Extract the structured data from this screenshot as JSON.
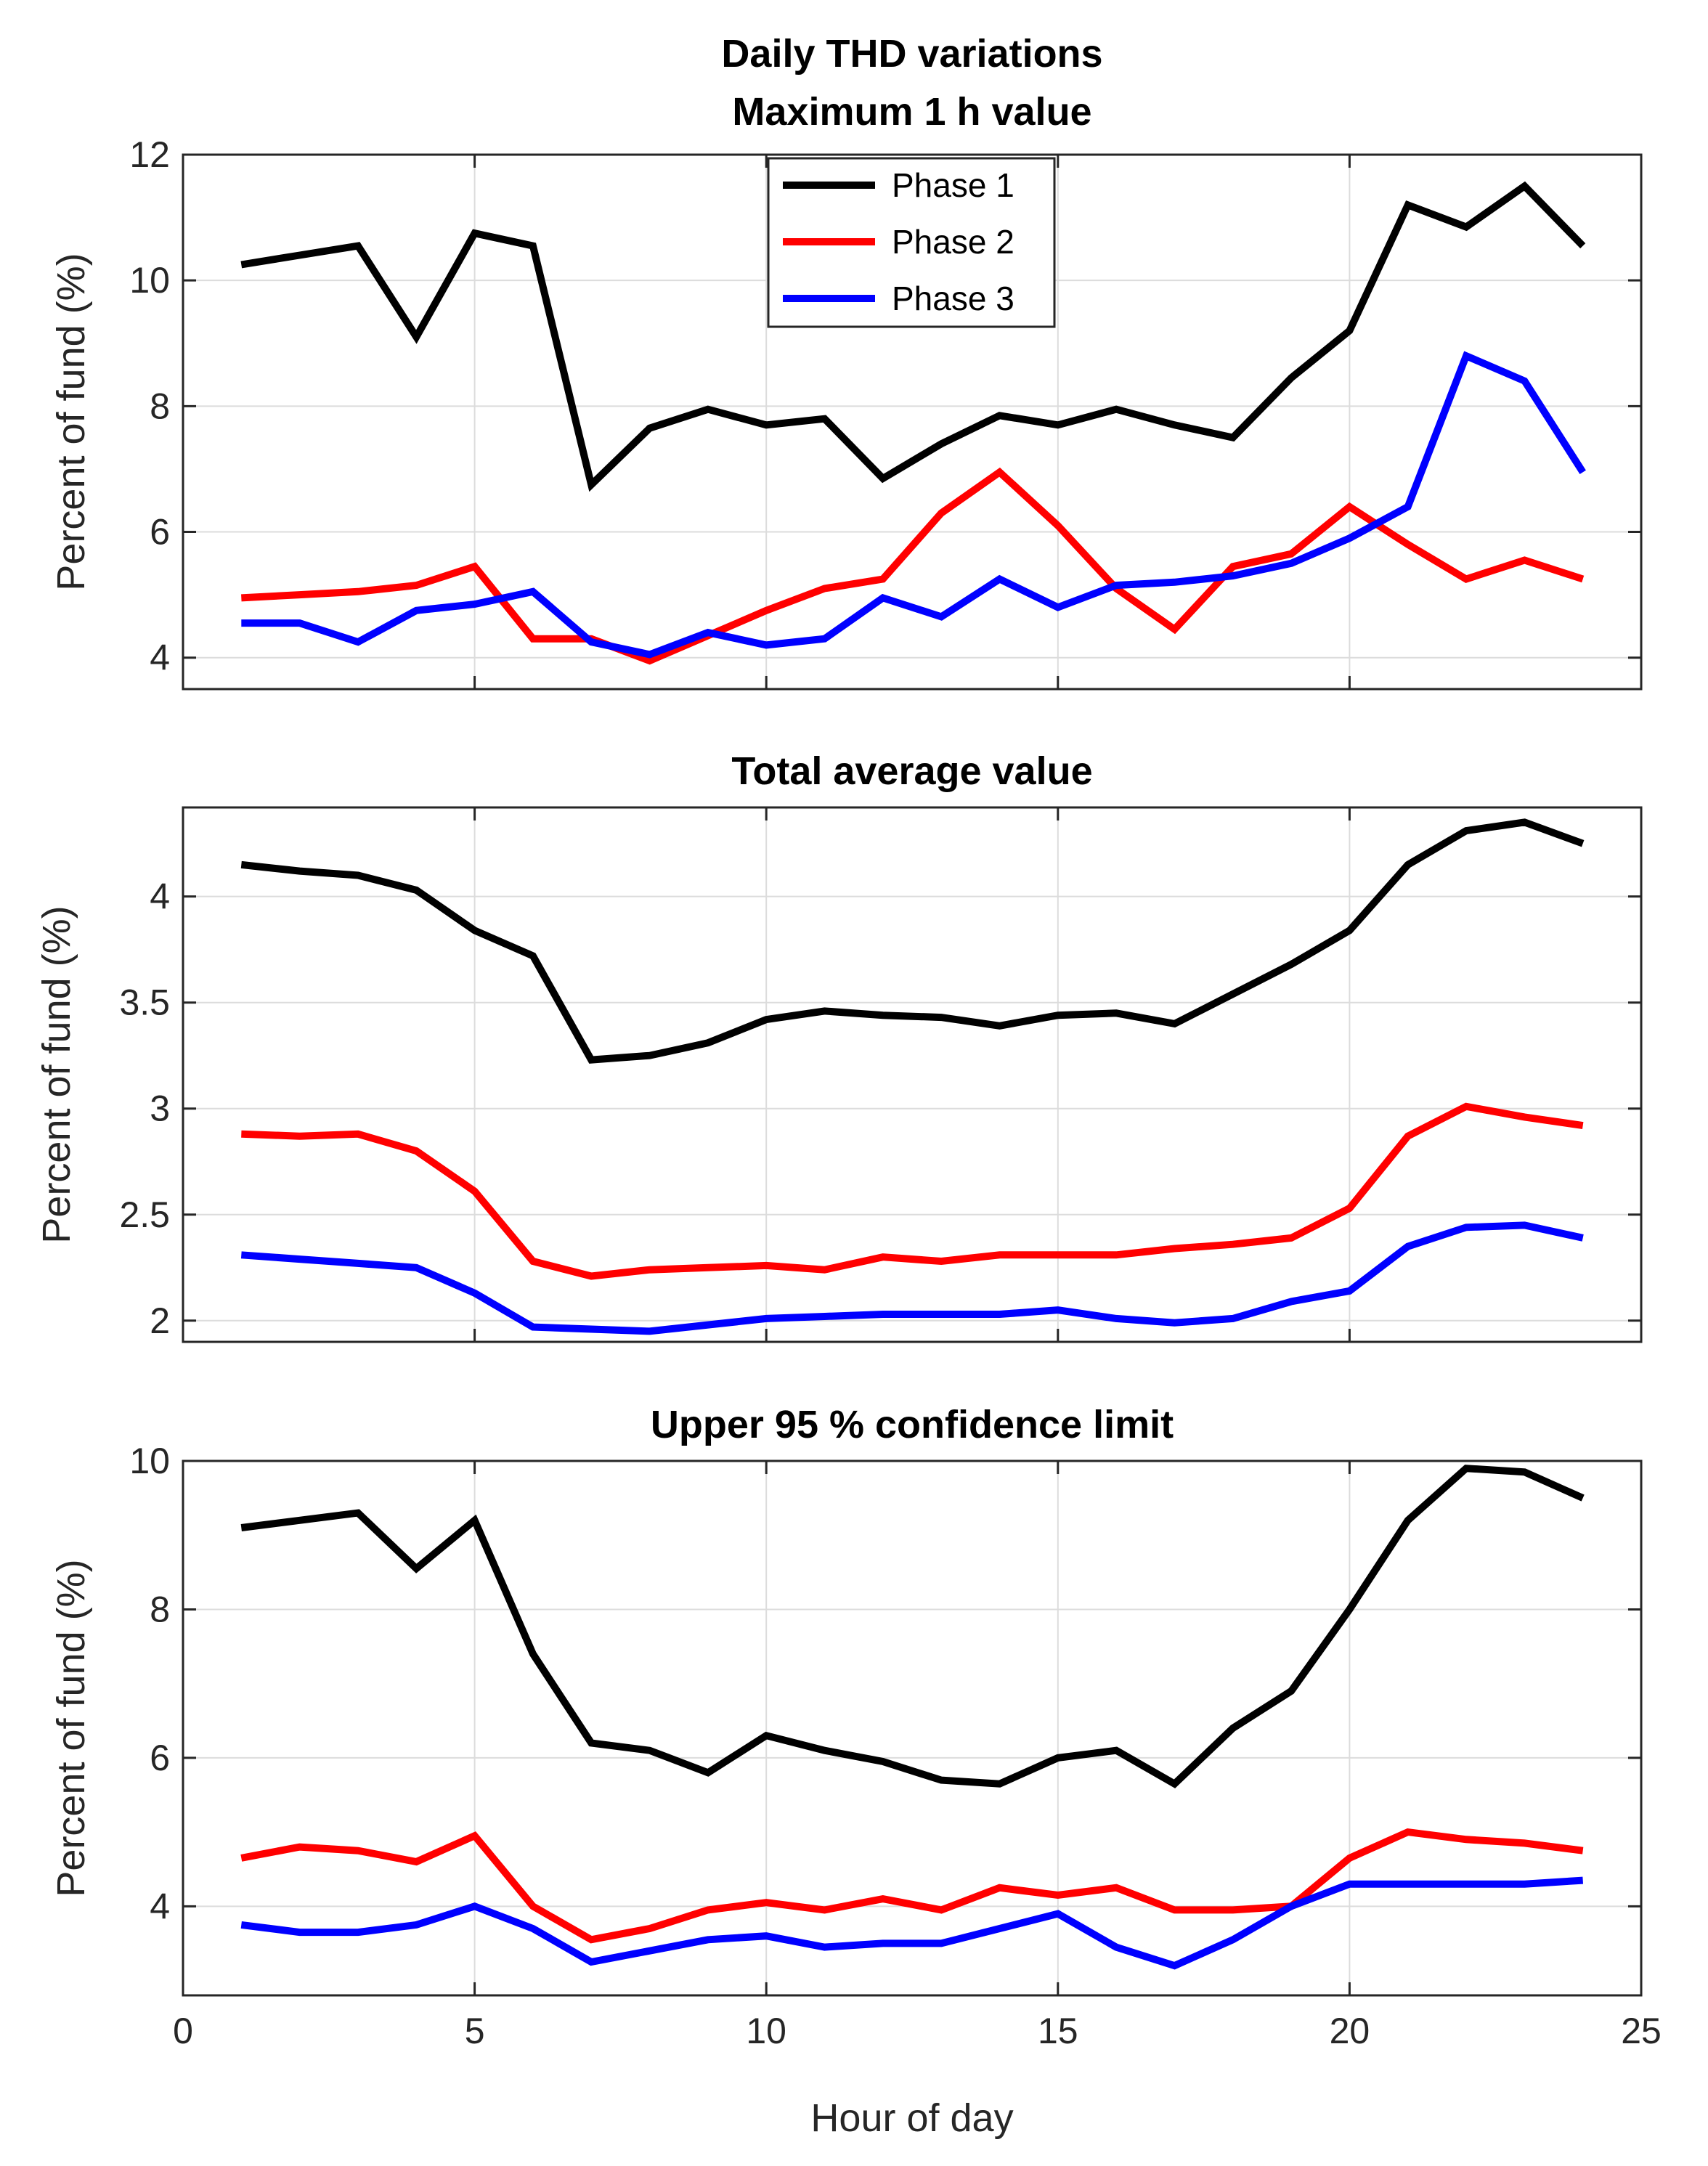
{
  "figure_title": "Daily THD variations",
  "xlabel": "Hour of day",
  "colors": {
    "phase1": "#000000",
    "phase2": "#ff0000",
    "phase3": "#0000ff"
  },
  "legend": [
    "Phase 1",
    "Phase 2",
    "Phase 3"
  ],
  "chart_data": [
    {
      "type": "line",
      "title": "Maximum 1 h value",
      "ylabel": "Percent of fund (%)",
      "xlim": [
        0,
        25
      ],
      "ylim": [
        3.5,
        12
      ],
      "xticks": [
        0,
        5,
        10,
        15,
        20,
        25
      ],
      "yticks": [
        4,
        6,
        8,
        10,
        12
      ],
      "x": [
        1,
        2,
        3,
        4,
        5,
        6,
        7,
        8,
        9,
        10,
        11,
        12,
        13,
        14,
        15,
        16,
        17,
        18,
        19,
        20,
        21,
        22,
        23,
        24
      ],
      "series": [
        {
          "name": "Phase 1",
          "values": [
            10.25,
            10.4,
            10.55,
            9.1,
            10.75,
            10.55,
            6.75,
            7.65,
            7.95,
            7.7,
            7.8,
            6.85,
            7.4,
            7.85,
            7.7,
            7.95,
            7.7,
            7.5,
            8.45,
            9.2,
            11.2,
            10.85,
            11.5,
            10.55
          ]
        },
        {
          "name": "Phase 2",
          "values": [
            4.95,
            5.0,
            5.05,
            5.15,
            5.45,
            4.3,
            4.3,
            3.95,
            4.35,
            4.75,
            5.1,
            5.25,
            6.3,
            6.95,
            6.1,
            5.1,
            4.45,
            5.45,
            5.65,
            6.4,
            5.8,
            5.25,
            5.55,
            5.25
          ]
        },
        {
          "name": "Phase 3",
          "values": [
            4.55,
            4.55,
            4.25,
            4.75,
            4.85,
            5.05,
            4.25,
            4.05,
            4.4,
            4.2,
            4.3,
            4.95,
            4.65,
            5.25,
            4.8,
            5.15,
            5.2,
            5.3,
            5.5,
            5.9,
            6.4,
            8.8,
            8.4,
            6.95
          ]
        }
      ],
      "legend_position": "top-center",
      "grid": true
    },
    {
      "type": "line",
      "title": "Total average value",
      "ylabel": "Percent of fund (%)",
      "xlim": [
        0,
        25
      ],
      "ylim": [
        1.9,
        4.42
      ],
      "xticks": [
        0,
        5,
        10,
        15,
        20,
        25
      ],
      "yticks": [
        2,
        2.5,
        3,
        3.5,
        4
      ],
      "ytick_labels": [
        "2",
        "2.5",
        "3",
        "3.5",
        "4"
      ],
      "x": [
        1,
        2,
        3,
        4,
        5,
        6,
        7,
        8,
        9,
        10,
        11,
        12,
        13,
        14,
        15,
        16,
        17,
        18,
        19,
        20,
        21,
        22,
        23,
        24
      ],
      "series": [
        {
          "name": "Phase 1",
          "values": [
            4.15,
            4.12,
            4.1,
            4.03,
            3.84,
            3.72,
            3.23,
            3.25,
            3.31,
            3.42,
            3.46,
            3.44,
            3.43,
            3.39,
            3.44,
            3.45,
            3.4,
            3.54,
            3.68,
            3.84,
            4.15,
            4.31,
            4.35,
            4.25
          ]
        },
        {
          "name": "Phase 2",
          "values": [
            2.88,
            2.87,
            2.88,
            2.8,
            2.61,
            2.28,
            2.21,
            2.24,
            2.25,
            2.26,
            2.24,
            2.3,
            2.28,
            2.31,
            2.31,
            2.31,
            2.34,
            2.36,
            2.39,
            2.53,
            2.87,
            3.01,
            2.96,
            2.92
          ]
        },
        {
          "name": "Phase 3",
          "values": [
            2.31,
            2.29,
            2.27,
            2.25,
            2.13,
            1.97,
            1.96,
            1.95,
            1.98,
            2.01,
            2.02,
            2.03,
            2.03,
            2.03,
            2.05,
            2.01,
            1.99,
            2.01,
            2.09,
            2.14,
            2.35,
            2.44,
            2.45,
            2.39
          ]
        }
      ],
      "grid": true
    },
    {
      "type": "line",
      "title": "Upper 95 % confidence limit",
      "ylabel": "Percent of fund (%)",
      "xlim": [
        0,
        25
      ],
      "ylim": [
        2.8,
        10
      ],
      "xticks": [
        0,
        5,
        10,
        15,
        20,
        25
      ],
      "yticks": [
        4,
        6,
        8,
        10
      ],
      "x": [
        1,
        2,
        3,
        4,
        5,
        6,
        7,
        8,
        9,
        10,
        11,
        12,
        13,
        14,
        15,
        16,
        17,
        18,
        19,
        20,
        21,
        22,
        23,
        24
      ],
      "series": [
        {
          "name": "Phase 1",
          "values": [
            9.1,
            9.2,
            9.3,
            8.55,
            9.2,
            7.4,
            6.2,
            6.1,
            5.8,
            6.3,
            6.1,
            5.95,
            5.7,
            5.65,
            6.0,
            6.1,
            5.65,
            6.4,
            6.9,
            8.0,
            9.2,
            9.9,
            9.85,
            9.5
          ]
        },
        {
          "name": "Phase 2",
          "values": [
            4.65,
            4.8,
            4.75,
            4.6,
            4.95,
            4.0,
            3.55,
            3.7,
            3.95,
            4.05,
            3.95,
            4.1,
            3.95,
            4.25,
            4.15,
            4.25,
            3.95,
            3.95,
            4.0,
            4.65,
            5.0,
            4.9,
            4.85,
            4.75
          ]
        },
        {
          "name": "Phase 3",
          "values": [
            3.75,
            3.65,
            3.65,
            3.75,
            4.0,
            3.7,
            3.25,
            3.4,
            3.55,
            3.6,
            3.45,
            3.5,
            3.5,
            3.7,
            3.9,
            3.45,
            3.2,
            3.55,
            4.0,
            4.3,
            4.3,
            4.3,
            4.3,
            4.35
          ]
        }
      ],
      "grid": true
    }
  ]
}
